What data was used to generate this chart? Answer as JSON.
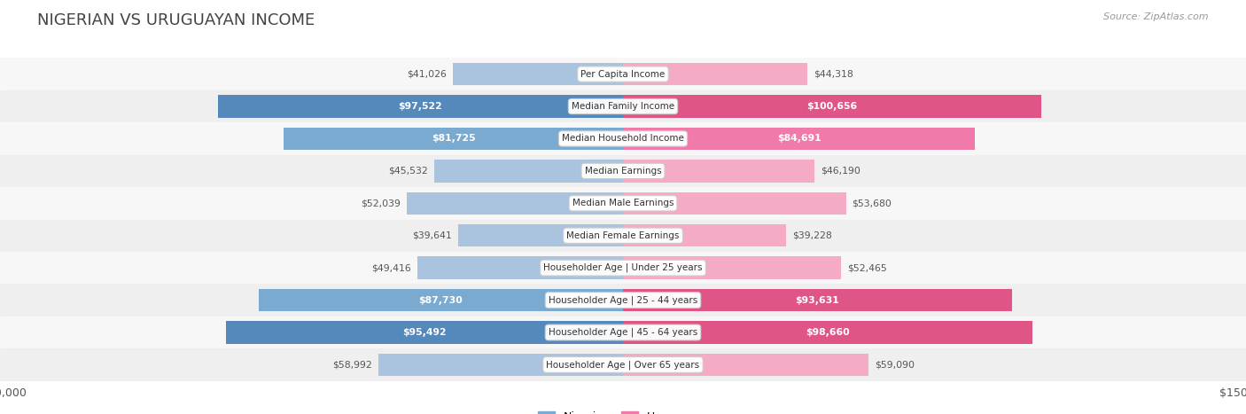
{
  "title": "NIGERIAN VS URUGUAYAN INCOME",
  "source": "Source: ZipAtlas.com",
  "categories": [
    "Per Capita Income",
    "Median Family Income",
    "Median Household Income",
    "Median Earnings",
    "Median Male Earnings",
    "Median Female Earnings",
    "Householder Age | Under 25 years",
    "Householder Age | 25 - 44 years",
    "Householder Age | 45 - 64 years",
    "Householder Age | Over 65 years"
  ],
  "nigerian": [
    41026,
    97522,
    81725,
    45532,
    52039,
    39641,
    49416,
    87730,
    95492,
    58992
  ],
  "uruguayan": [
    44318,
    100656,
    84691,
    46190,
    53680,
    39228,
    52465,
    93631,
    98660,
    59090
  ],
  "nigerian_labels": [
    "$41,026",
    "$97,522",
    "$81,725",
    "$45,532",
    "$52,039",
    "$39,641",
    "$49,416",
    "$87,730",
    "$95,492",
    "$58,992"
  ],
  "uruguayan_labels": [
    "$44,318",
    "$100,656",
    "$84,691",
    "$46,190",
    "$53,680",
    "$39,228",
    "$52,465",
    "$93,631",
    "$98,660",
    "$59,090"
  ],
  "nigerian_color_light": "#aac4e0",
  "nigerian_color_medium": "#7aaad0",
  "nigerian_color_dark": "#5588bb",
  "uruguayan_color_light": "#f5aac5",
  "uruguayan_color_medium": "#f07aaa",
  "uruguayan_color_dark": "#e05588",
  "max_val": 150000,
  "bg_color": "#ffffff",
  "row_bg_even": "#f7f7f7",
  "row_bg_odd": "#efefef",
  "label_inside_color": "#ffffff",
  "label_outside_color": "#555555",
  "title_color": "#444444",
  "source_color": "#999999",
  "inside_threshold": 60000,
  "cat_label_fontsize": 7.5,
  "val_label_fontsize": 7.8,
  "title_fontsize": 13,
  "source_fontsize": 8
}
